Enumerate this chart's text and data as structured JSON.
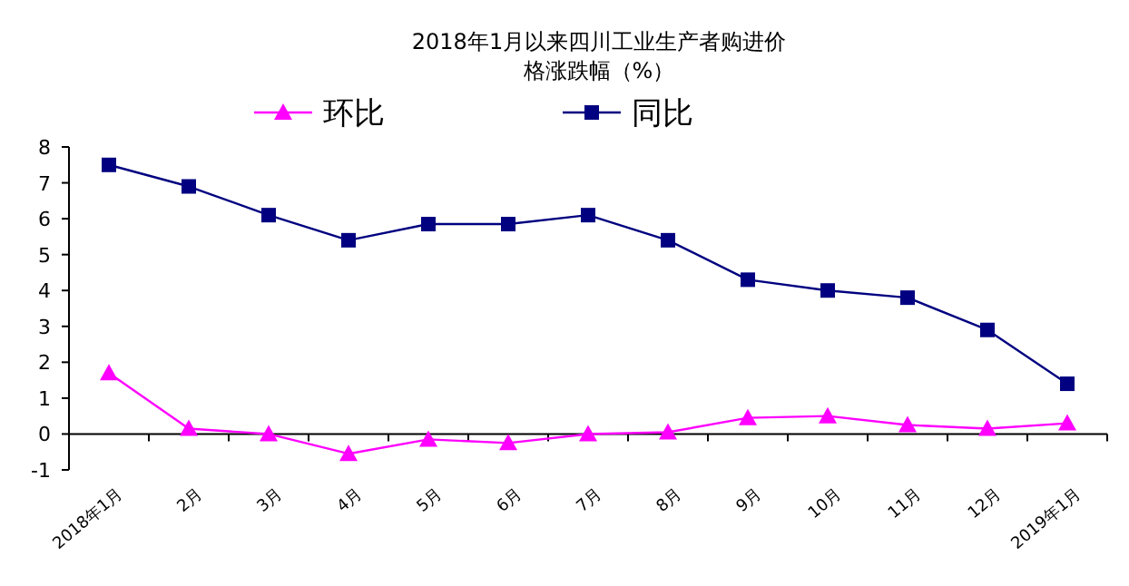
{
  "chart_data": {
    "type": "line",
    "title": "2018年1月以来四川工业生产者购进价格涨跌幅（%）",
    "categories": [
      "2018年1月",
      "2月",
      "3月",
      "4月",
      "5月",
      "6月",
      "7月",
      "8月",
      "9月",
      "10月",
      "11月",
      "12月",
      "2019年1月"
    ],
    "series": [
      {
        "name": "环比",
        "color": "#ff00ff",
        "marker": "triangle",
        "values": [
          1.7,
          0.15,
          0.0,
          -0.55,
          -0.15,
          -0.25,
          0.0,
          0.05,
          0.45,
          0.5,
          0.25,
          0.15,
          0.3
        ]
      },
      {
        "name": "同比",
        "color": "#000080",
        "marker": "square",
        "values": [
          7.5,
          6.9,
          6.1,
          5.4,
          5.85,
          5.85,
          6.1,
          5.4,
          4.3,
          4.0,
          3.8,
          2.9,
          1.4
        ]
      }
    ],
    "ylim": [
      -1,
      8
    ],
    "yticks": [
      -1,
      0,
      1,
      2,
      3,
      4,
      5,
      6,
      7,
      8
    ],
    "legend": "top",
    "line_style": "solid"
  }
}
